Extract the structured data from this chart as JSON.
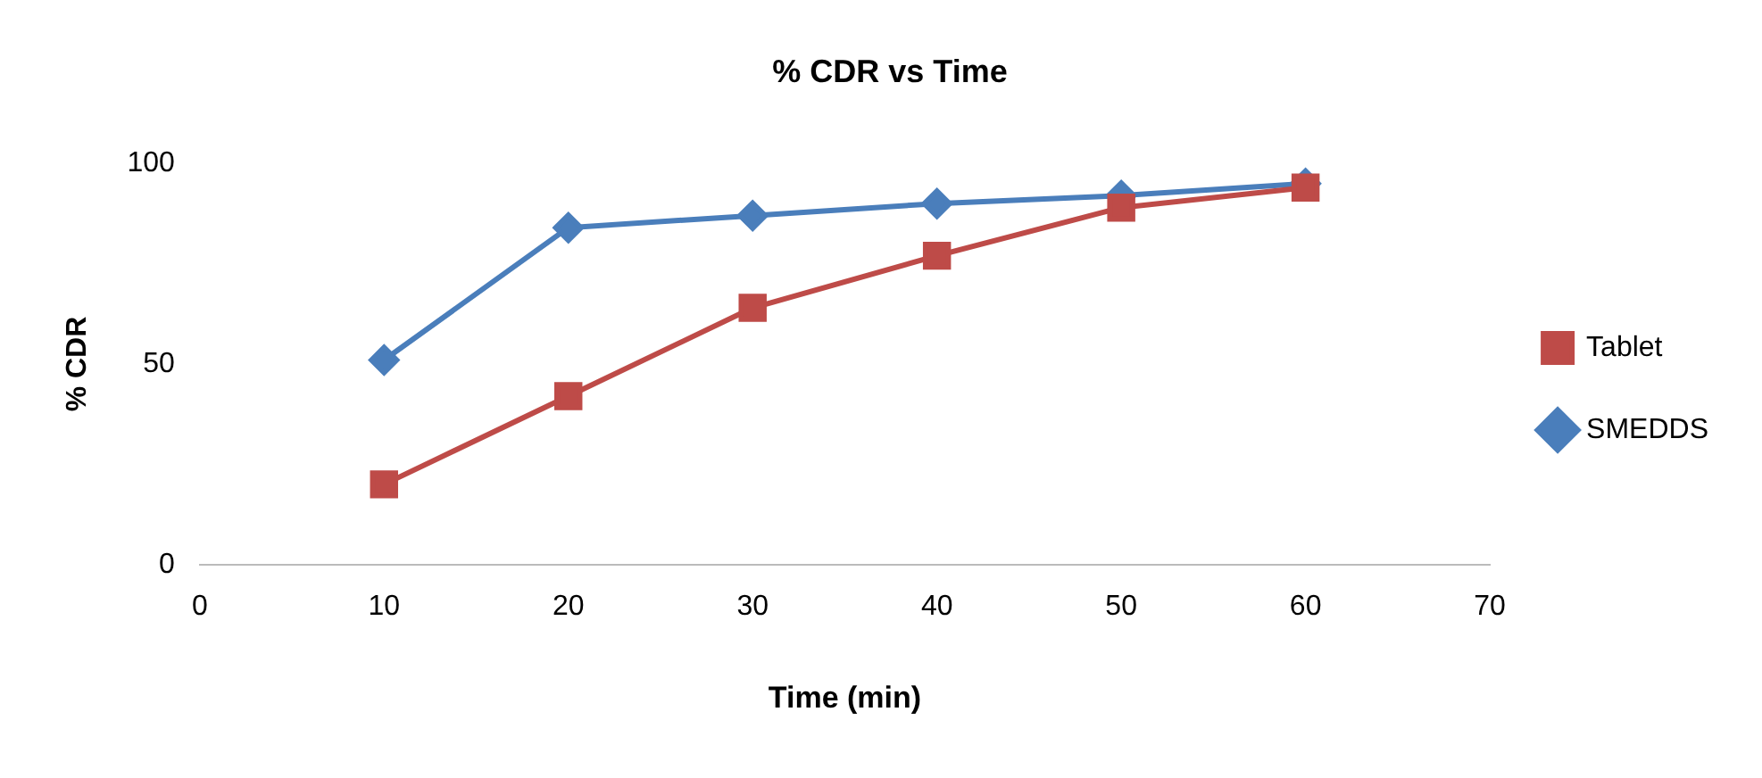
{
  "chart_data": {
    "type": "line",
    "title": "% CDR vs Time",
    "xlabel": "Time (min)",
    "ylabel": "% CDR",
    "x": [
      10,
      20,
      30,
      40,
      50,
      60
    ],
    "series": [
      {
        "name": "SMEDDS",
        "color": "#4a7ebb",
        "values": [
          51,
          84,
          87,
          90,
          92,
          95
        ],
        "marker": "diamond"
      },
      {
        "name": "Tablet",
        "color": "#be4b48",
        "values": [
          20,
          42,
          64,
          77,
          89,
          94
        ],
        "marker": "square"
      }
    ],
    "xlim": [
      0,
      70
    ],
    "xticks": [
      0,
      10,
      20,
      30,
      40,
      50,
      60,
      70
    ],
    "ylim": [
      0,
      100
    ],
    "yticks": [
      0,
      50,
      100
    ],
    "grid": false,
    "legend": "right",
    "line_style": "solid"
  }
}
